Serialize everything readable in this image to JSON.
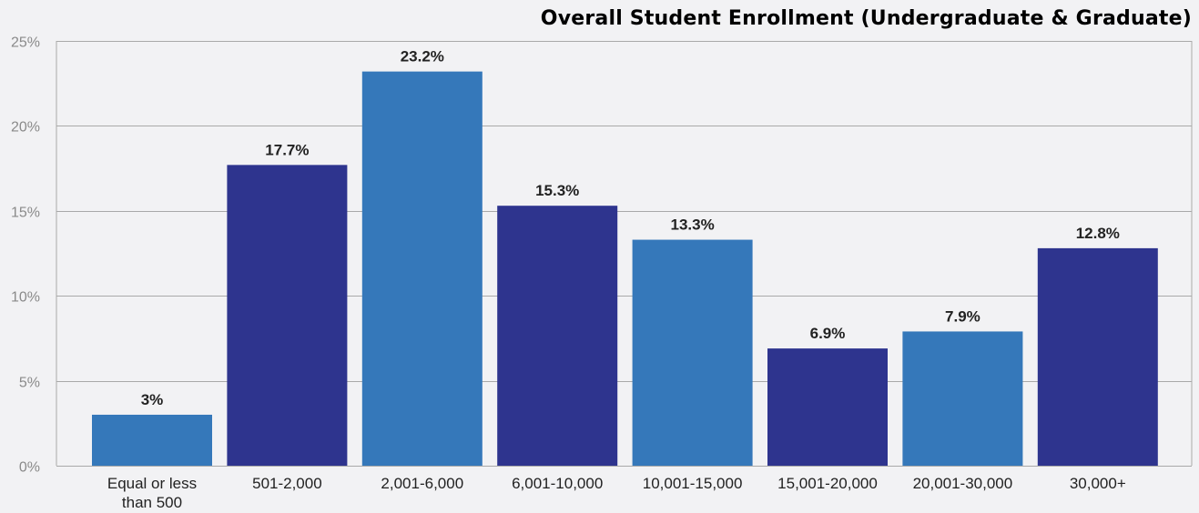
{
  "chart_data": {
    "type": "bar",
    "title": "Overall Student Enrollment (Undergraduate & Graduate)",
    "categories": [
      "Equal or less than 500",
      "501-2,000",
      "2,001-6,000",
      "6,001-10,000",
      "10,001-15,000",
      "15,001-20,000",
      "20,001-30,000",
      "30,000+"
    ],
    "values": [
      3,
      17.7,
      23.2,
      15.3,
      13.3,
      6.9,
      7.9,
      12.8
    ],
    "value_labels": [
      "3%",
      "17.7%",
      "23.2%",
      "15.3%",
      "13.3%",
      "6.9%",
      "7.9%",
      "12.8%"
    ],
    "yticks": [
      0,
      5,
      10,
      15,
      20,
      25
    ],
    "ytick_labels": [
      "0%",
      "5%",
      "10%",
      "15%",
      "20%",
      "25%"
    ],
    "ylim": [
      0,
      25
    ],
    "xlabel": "",
    "ylabel": "",
    "grid": true,
    "bar_colors": [
      "#3578ba",
      "#2e348e",
      "#3578ba",
      "#2e348e",
      "#3578ba",
      "#2e348e",
      "#3578ba",
      "#2e348e"
    ],
    "gridline_color": "#a9a9a9"
  }
}
